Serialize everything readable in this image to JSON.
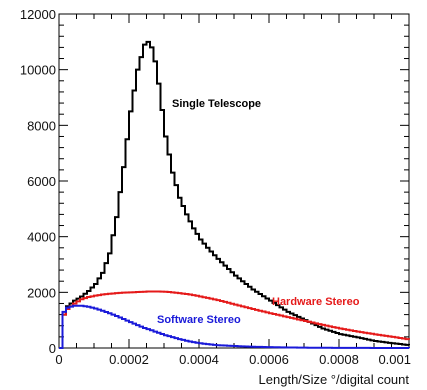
{
  "chart_data": {
    "type": "line",
    "title": "",
    "xlabel": "Length/Size °/digital count",
    "ylabel": "",
    "xlim": [
      0,
      0.001
    ],
    "ylim": [
      0,
      12000
    ],
    "grid": false,
    "legend": "none",
    "x_ticks": [
      {
        "value": 0,
        "label": "0"
      },
      {
        "value": 0.0002,
        "label": "0.0002"
      },
      {
        "value": 0.0004,
        "label": "0.0004"
      },
      {
        "value": 0.0006,
        "label": "0.0006"
      },
      {
        "value": 0.0008,
        "label": "0.0008"
      },
      {
        "value": 0.001,
        "label": "0.001"
      }
    ],
    "y_ticks": [
      {
        "value": 0,
        "label": "0"
      },
      {
        "value": 2000,
        "label": "2000"
      },
      {
        "value": 4000,
        "label": "4000"
      },
      {
        "value": 6000,
        "label": "6000"
      },
      {
        "value": 8000,
        "label": "8000"
      },
      {
        "value": 10000,
        "label": "10000"
      },
      {
        "value": 12000,
        "label": "12000"
      }
    ],
    "x": [
      0,
      1e-05,
      2e-05,
      4e-05,
      6e-05,
      8e-05,
      0.0001,
      0.00012,
      0.00014,
      0.00016,
      0.00018,
      0.0002,
      0.00022,
      0.00024,
      0.00025,
      0.00026,
      0.00027,
      0.00028,
      0.0003,
      0.00032,
      0.00034,
      0.00036,
      0.00038,
      0.0004,
      0.00042,
      0.00045,
      0.0005,
      0.00055,
      0.0006,
      0.00065,
      0.0007,
      0.00075,
      0.0008,
      0.00085,
      0.0009,
      0.00095,
      0.001
    ],
    "series": [
      {
        "name": "Single Telescope",
        "color": "#000000",
        "values": [
          0,
          1200,
          1500,
          1700,
          1850,
          2050,
          2300,
          2700,
          3400,
          4700,
          6500,
          8500,
          10000,
          10900,
          11000,
          10800,
          10300,
          9500,
          7600,
          6300,
          5400,
          4800,
          4300,
          3900,
          3600,
          3200,
          2600,
          2100,
          1700,
          1300,
          1000,
          700,
          500,
          380,
          250,
          170,
          100
        ]
      },
      {
        "name": "Hardware Stereo",
        "color": "#e51a1a",
        "values": [
          0,
          1200,
          1400,
          1600,
          1750,
          1830,
          1880,
          1920,
          1950,
          1970,
          1990,
          2000,
          2010,
          2020,
          2030,
          2030,
          2030,
          2030,
          2020,
          2000,
          1970,
          1940,
          1900,
          1850,
          1800,
          1720,
          1560,
          1400,
          1250,
          1110,
          970,
          830,
          700,
          590,
          490,
          400,
          300
        ]
      },
      {
        "name": "Software Stereo",
        "color": "#1a1ad9",
        "values": [
          0,
          1300,
          1450,
          1520,
          1520,
          1480,
          1420,
          1340,
          1250,
          1150,
          1040,
          930,
          820,
          720,
          680,
          640,
          590,
          550,
          460,
          390,
          320,
          260,
          210,
          170,
          140,
          100,
          70,
          45,
          30,
          20,
          12,
          8,
          5,
          3,
          2,
          1,
          0
        ]
      }
    ]
  }
}
